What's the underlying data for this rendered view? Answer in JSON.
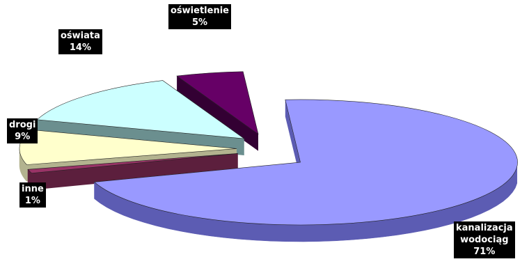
{
  "chart_data": {
    "type": "pie",
    "style": "3d-exploded",
    "slices": [
      {
        "name": "kanalizacja wodociąg",
        "label_lines": [
          "kanalizacja",
          "wodociąg"
        ],
        "value": 71,
        "value_label": "71%",
        "color": "#9999ff",
        "side_color": "#5c5cb3"
      },
      {
        "name": "inne",
        "label_lines": [
          "inne"
        ],
        "value": 1,
        "value_label": "1%",
        "color": "#993366",
        "side_color": "#5c1f3d"
      },
      {
        "name": "drogi",
        "label_lines": [
          "drogi"
        ],
        "value": 9,
        "value_label": "9%",
        "color": "#ffffcc",
        "side_color": "#b3b38f"
      },
      {
        "name": "oświata",
        "label_lines": [
          "oświata"
        ],
        "value": 14,
        "value_label": "14%",
        "color": "#ccffff",
        "side_color": "#6b8f8f"
      },
      {
        "name": "oświetlenie",
        "label_lines": [
          "oświetlenie"
        ],
        "value": 5,
        "value_label": "5%",
        "color": "#660066",
        "side_color": "#330033"
      }
    ],
    "legend": "none",
    "title": ""
  }
}
